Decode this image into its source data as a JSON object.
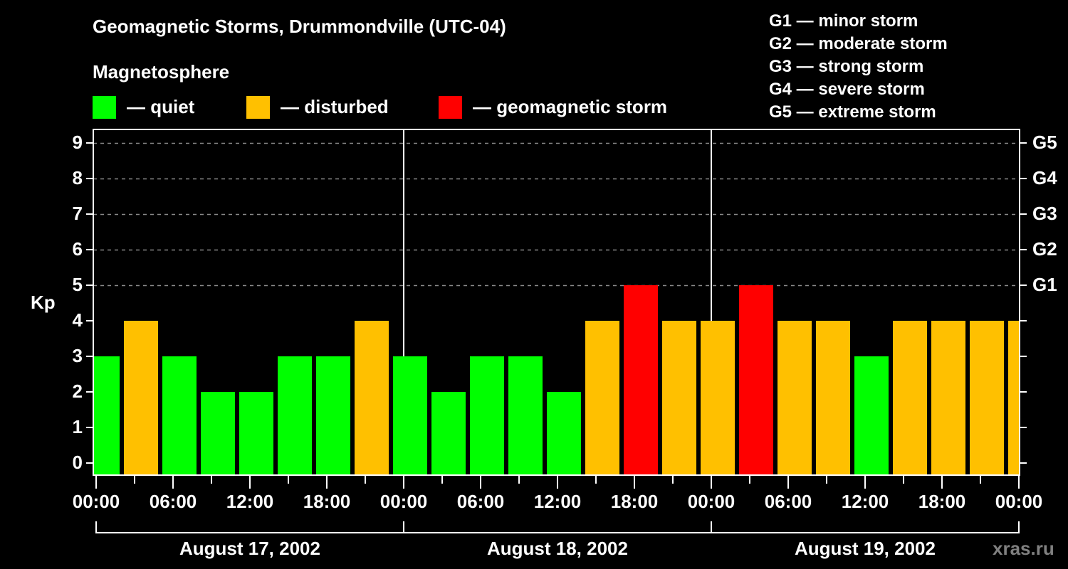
{
  "header": {
    "title": "Geomagnetic Storms, Drummondville (UTC-04)",
    "subtitle": "Magnetosphere"
  },
  "legend": [
    {
      "label": "— quiet",
      "color": "#00ff00"
    },
    {
      "label": "— disturbed",
      "color": "#ffc000"
    },
    {
      "label": "— geomagnetic storm",
      "color": "#ff0000"
    }
  ],
  "storm_scale": [
    "G1 — minor storm",
    "G2 — moderate storm",
    "G3 — strong storm",
    "G4 — severe storm",
    "G5 — extreme storm"
  ],
  "axes": {
    "ylabel": "Kp",
    "yticks": [
      "0",
      "1",
      "2",
      "3",
      "4",
      "5",
      "6",
      "7",
      "8",
      "9"
    ],
    "right_ticks": [
      {
        "value": 5,
        "label": "G1"
      },
      {
        "value": 6,
        "label": "G2"
      },
      {
        "value": 7,
        "label": "G3"
      },
      {
        "value": 8,
        "label": "G4"
      },
      {
        "value": 9,
        "label": "G5"
      }
    ],
    "xticks": [
      "00:00",
      "06:00",
      "12:00",
      "18:00",
      "00:00",
      "06:00",
      "12:00",
      "18:00",
      "00:00",
      "06:00",
      "12:00",
      "18:00",
      "00:00"
    ],
    "dates": [
      "August 17, 2002",
      "August 18, 2002",
      "August 19, 2002"
    ]
  },
  "watermark": "xras.ru",
  "colors": {
    "quiet": "#00ff00",
    "disturbed": "#ffc000",
    "storm": "#ff0000",
    "grid": "#8a8a8a",
    "watermark": "#808080"
  },
  "chart_data": {
    "type": "bar",
    "title": "Geomagnetic Storms, Drummondville (UTC-04)",
    "xlabel": "",
    "ylabel": "Kp",
    "ylim": [
      0,
      9
    ],
    "grid": true,
    "categories": [
      "Aug 17 00:00",
      "Aug 17 03:00",
      "Aug 17 06:00",
      "Aug 17 09:00",
      "Aug 17 12:00",
      "Aug 17 15:00",
      "Aug 17 18:00",
      "Aug 17 21:00",
      "Aug 18 00:00",
      "Aug 18 03:00",
      "Aug 18 06:00",
      "Aug 18 09:00",
      "Aug 18 12:00",
      "Aug 18 15:00",
      "Aug 18 18:00",
      "Aug 18 21:00",
      "Aug 19 00:00",
      "Aug 19 03:00",
      "Aug 19 06:00",
      "Aug 19 09:00",
      "Aug 19 12:00",
      "Aug 19 15:00",
      "Aug 19 18:00",
      "Aug 19 21:00",
      "Aug 20 00:00"
    ],
    "values": [
      3,
      4,
      3,
      2,
      2,
      3,
      3,
      4,
      3,
      2,
      3,
      3,
      2,
      4,
      5,
      4,
      4,
      5,
      4,
      4,
      3,
      4,
      4,
      4,
      4
    ],
    "levels": [
      "quiet",
      "disturbed",
      "quiet",
      "quiet",
      "quiet",
      "quiet",
      "quiet",
      "disturbed",
      "quiet",
      "quiet",
      "quiet",
      "quiet",
      "quiet",
      "disturbed",
      "storm",
      "disturbed",
      "disturbed",
      "storm",
      "disturbed",
      "disturbed",
      "quiet",
      "disturbed",
      "disturbed",
      "disturbed",
      "disturbed"
    ],
    "legend": [
      "quiet",
      "disturbed",
      "geomagnetic storm"
    ],
    "secondary_axis": {
      "G1": 5,
      "G2": 6,
      "G3": 7,
      "G4": 8,
      "G5": 9
    }
  }
}
